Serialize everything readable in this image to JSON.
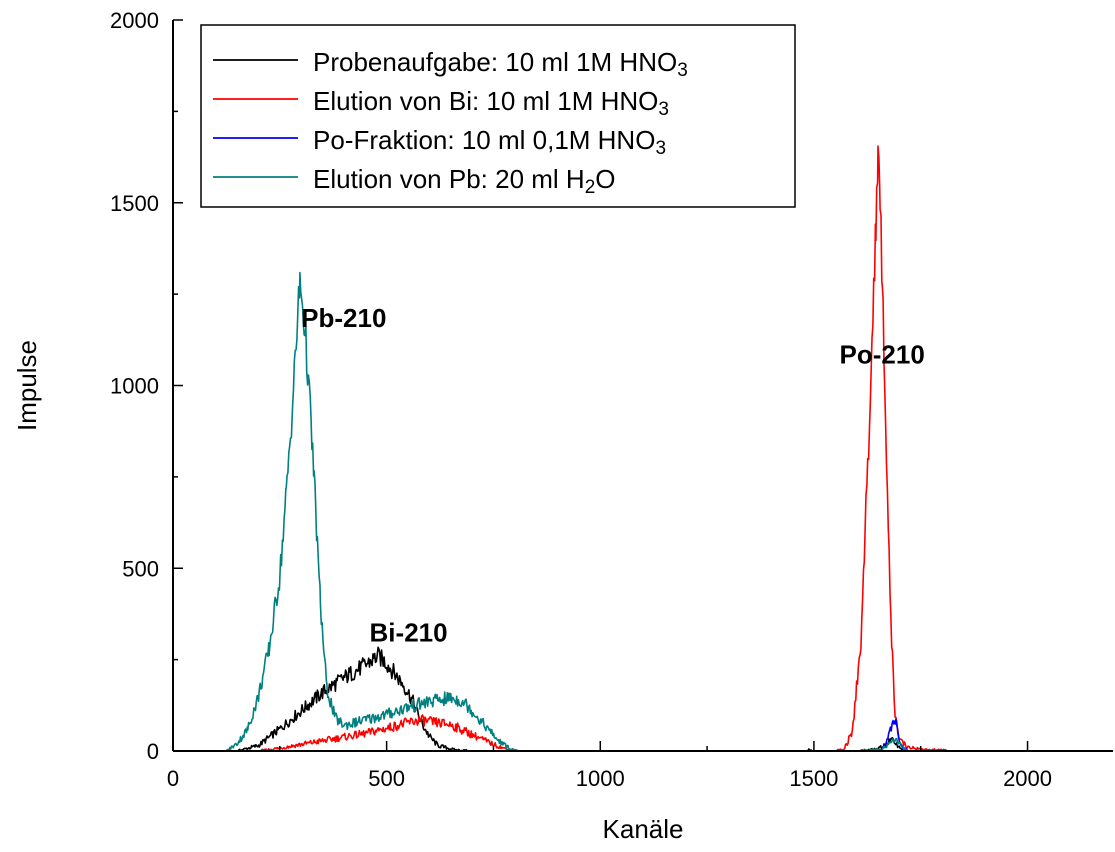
{
  "chart_data": {
    "type": "line",
    "title": "",
    "xlabel": "Kanäle",
    "ylabel": "Impulse",
    "xlim": [
      0,
      2200
    ],
    "ylim": [
      0,
      2000
    ],
    "x_ticks": [
      0,
      500,
      1000,
      1500,
      2000
    ],
    "x_tick_labels": [
      "0",
      "500",
      "1000",
      "1500",
      "2000"
    ],
    "y_ticks": [
      0,
      500,
      1000,
      1500,
      2000
    ],
    "y_tick_labels": [
      "0",
      "500",
      "1000",
      "1500",
      "2000"
    ],
    "grid": false,
    "legend_position": "top-left",
    "series": [
      {
        "name": "Probenaufgabe: 10 ml 1M HNO3",
        "legend": {
          "prefix": "Probenaufgabe: 10 ml 1M HNO",
          "sub": "3",
          "suffix": ""
        },
        "color": "#000000",
        "points": [
          [
            0,
            0
          ],
          [
            150,
            0
          ],
          [
            200,
            15
          ],
          [
            250,
            60
          ],
          [
            300,
            110
          ],
          [
            350,
            160
          ],
          [
            400,
            200
          ],
          [
            450,
            235
          ],
          [
            480,
            260
          ],
          [
            500,
            240
          ],
          [
            520,
            210
          ],
          [
            540,
            180
          ],
          [
            560,
            140
          ],
          [
            580,
            80
          ],
          [
            600,
            40
          ],
          [
            620,
            15
          ],
          [
            660,
            3
          ],
          [
            700,
            0
          ],
          [
            1480,
            0
          ],
          [
            1490,
            4
          ],
          [
            1500,
            0
          ],
          [
            1600,
            0
          ],
          [
            1650,
            5
          ],
          [
            1670,
            20
          ],
          [
            1680,
            30
          ],
          [
            1690,
            25
          ],
          [
            1700,
            10
          ],
          [
            1720,
            0
          ],
          [
            2060,
            0
          ]
        ]
      },
      {
        "name": "Elution von Bi: 10 ml 1M HNO3",
        "legend": {
          "prefix": "Elution von Bi: 10 ml 1M HNO",
          "sub": "3",
          "suffix": ""
        },
        "color": "#ff0000",
        "points": [
          [
            0,
            0
          ],
          [
            200,
            0
          ],
          [
            250,
            8
          ],
          [
            300,
            18
          ],
          [
            350,
            28
          ],
          [
            400,
            38
          ],
          [
            450,
            48
          ],
          [
            500,
            62
          ],
          [
            550,
            78
          ],
          [
            580,
            85
          ],
          [
            600,
            80
          ],
          [
            650,
            72
          ],
          [
            700,
            45
          ],
          [
            750,
            18
          ],
          [
            780,
            5
          ],
          [
            800,
            0
          ],
          [
            1550,
            0
          ],
          [
            1570,
            5
          ],
          [
            1590,
            50
          ],
          [
            1610,
            300
          ],
          [
            1630,
            900
          ],
          [
            1645,
            1450
          ],
          [
            1650,
            1600
          ],
          [
            1655,
            1500
          ],
          [
            1660,
            1300
          ],
          [
            1670,
            800
          ],
          [
            1680,
            350
          ],
          [
            1690,
            100
          ],
          [
            1700,
            30
          ],
          [
            1720,
            10
          ],
          [
            1760,
            4
          ],
          [
            1800,
            2
          ],
          [
            1820,
            0
          ],
          [
            2060,
            0
          ]
        ]
      },
      {
        "name": "Po-Fraktion: 10 ml 0,1M HNO3",
        "legend": {
          "prefix": "Po-Fraktion: 10 ml 0,1M HNO",
          "sub": "3",
          "suffix": ""
        },
        "color": "#0000ff",
        "points": [
          [
            0,
            0
          ],
          [
            1650,
            0
          ],
          [
            1665,
            10
          ],
          [
            1675,
            45
          ],
          [
            1685,
            80
          ],
          [
            1692,
            75
          ],
          [
            1700,
            30
          ],
          [
            1710,
            8
          ],
          [
            1720,
            0
          ],
          [
            2060,
            0
          ]
        ]
      },
      {
        "name": "Elution von Pb: 20 ml H2O",
        "legend": {
          "prefix": "Elution von Pb: 20 ml H",
          "sub": "2",
          "suffix": "O"
        },
        "color": "#008080",
        "points": [
          [
            0,
            0
          ],
          [
            125,
            0
          ],
          [
            150,
            20
          ],
          [
            175,
            60
          ],
          [
            200,
            150
          ],
          [
            225,
            280
          ],
          [
            250,
            480
          ],
          [
            265,
            700
          ],
          [
            280,
            950
          ],
          [
            290,
            1150
          ],
          [
            297,
            1280
          ],
          [
            305,
            1200
          ],
          [
            315,
            1050
          ],
          [
            330,
            750
          ],
          [
            345,
            400
          ],
          [
            360,
            170
          ],
          [
            380,
            90
          ],
          [
            400,
            70
          ],
          [
            450,
            85
          ],
          [
            500,
            100
          ],
          [
            550,
            120
          ],
          [
            600,
            135
          ],
          [
            650,
            145
          ],
          [
            680,
            135
          ],
          [
            700,
            110
          ],
          [
            730,
            70
          ],
          [
            760,
            30
          ],
          [
            790,
            5
          ],
          [
            810,
            0
          ],
          [
            1600,
            0
          ],
          [
            1660,
            5
          ],
          [
            1680,
            25
          ],
          [
            1690,
            30
          ],
          [
            1700,
            20
          ],
          [
            1720,
            0
          ],
          [
            2060,
            0
          ]
        ]
      }
    ],
    "annotations": [
      {
        "text": "Pb-210",
        "x": 300,
        "y": 1160
      },
      {
        "text": "Bi-210",
        "x": 460,
        "y": 300
      },
      {
        "text": "Po-210",
        "x": 1560,
        "y": 1060
      }
    ]
  }
}
